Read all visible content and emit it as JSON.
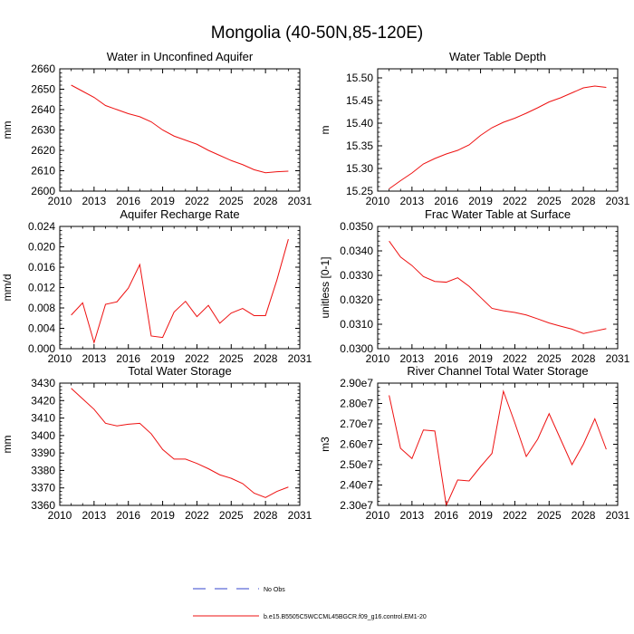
{
  "figure": {
    "title": "Mongolia (40-50N,85-120E)",
    "legend": [
      {
        "label": "No Obs",
        "color": "#3344cc",
        "style": "dashed"
      },
      {
        "label": "b.e15.B5505C5WCCML45BGCR.f09_g16.control.EM1-20",
        "color": "#ee1111",
        "style": "solid"
      }
    ]
  },
  "chart_data": [
    {
      "type": "line",
      "title": "Water in Unconfined Aquifer",
      "ylabel": "mm",
      "xlim": [
        2010,
        2031
      ],
      "xticks": [
        2010,
        2013,
        2016,
        2019,
        2022,
        2025,
        2028,
        2031
      ],
      "ylim": [
        2600,
        2660
      ],
      "yticks": [
        "2600",
        "2610",
        "2620",
        "2630",
        "2640",
        "2650",
        "2660"
      ],
      "yticks_values": [
        2600,
        2610,
        2620,
        2630,
        2640,
        2650,
        2660
      ],
      "x": [
        2011,
        2012,
        2013,
        2014,
        2015,
        2016,
        2017,
        2018,
        2019,
        2020,
        2021,
        2022,
        2023,
        2024,
        2025,
        2026,
        2027,
        2028,
        2029,
        2030
      ],
      "values": [
        2652,
        2649,
        2646,
        2642,
        2640,
        2638,
        2636.5,
        2634,
        2630,
        2627,
        2625,
        2623,
        2620,
        2617.5,
        2615,
        2613,
        2610.5,
        2609,
        2609.5,
        2609.8
      ],
      "color": "#ee1111"
    },
    {
      "type": "line",
      "title": "Water Table Depth",
      "ylabel": "m",
      "xlim": [
        2010,
        2031
      ],
      "xticks": [
        2010,
        2013,
        2016,
        2019,
        2022,
        2025,
        2028,
        2031
      ],
      "ylim": [
        15.25,
        15.52
      ],
      "yticks": [
        "15.25",
        "15.30",
        "15.35",
        "15.40",
        "15.45",
        "15.50"
      ],
      "yticks_values": [
        15.25,
        15.3,
        15.35,
        15.4,
        15.45,
        15.5
      ],
      "x": [
        2011,
        2012,
        2013,
        2014,
        2015,
        2016,
        2017,
        2018,
        2019,
        2020,
        2021,
        2022,
        2023,
        2024,
        2025,
        2026,
        2027,
        2028,
        2029,
        2030
      ],
      "values": [
        15.255,
        15.273,
        15.29,
        15.31,
        15.322,
        15.332,
        15.34,
        15.352,
        15.373,
        15.39,
        15.402,
        15.411,
        15.422,
        15.434,
        15.447,
        15.456,
        15.467,
        15.478,
        15.482,
        15.479
      ],
      "color": "#ee1111"
    },
    {
      "type": "line",
      "title": "Aquifer Recharge Rate",
      "ylabel": "mm/d",
      "xlim": [
        2010,
        2031
      ],
      "xticks": [
        2010,
        2013,
        2016,
        2019,
        2022,
        2025,
        2028,
        2031
      ],
      "ylim": [
        0,
        0.024
      ],
      "yticks": [
        "0.000",
        "0.004",
        "0.008",
        "0.012",
        "0.016",
        "0.020",
        "0.024"
      ],
      "yticks_values": [
        0,
        0.004,
        0.008,
        0.012,
        0.016,
        0.02,
        0.024
      ],
      "x": [
        2011,
        2012,
        2013,
        2014,
        2015,
        2016,
        2017,
        2018,
        2019,
        2020,
        2021,
        2022,
        2023,
        2024,
        2025,
        2026,
        2027,
        2028,
        2029,
        2030
      ],
      "values": [
        0.0066,
        0.009,
        0.0012,
        0.0087,
        0.0092,
        0.0119,
        0.0165,
        0.0025,
        0.0022,
        0.0072,
        0.0093,
        0.0063,
        0.0085,
        0.005,
        0.007,
        0.0079,
        0.0065,
        0.0065,
        0.0135,
        0.0215
      ],
      "color": "#ee1111"
    },
    {
      "type": "line",
      "title": "Frac Water Table at Surface",
      "ylabel": "unitless [0-1]",
      "xlim": [
        2010,
        2031
      ],
      "xticks": [
        2010,
        2013,
        2016,
        2019,
        2022,
        2025,
        2028,
        2031
      ],
      "ylim": [
        0.03,
        0.035
      ],
      "yticks": [
        "0.0300",
        "0.0310",
        "0.0320",
        "0.0330",
        "0.0340",
        "0.0350"
      ],
      "yticks_values": [
        0.03,
        0.031,
        0.032,
        0.033,
        0.034,
        0.035
      ],
      "x": [
        2011,
        2012,
        2013,
        2014,
        2015,
        2016,
        2017,
        2018,
        2019,
        2020,
        2021,
        2022,
        2023,
        2024,
        2025,
        2026,
        2027,
        2028,
        2029,
        2030
      ],
      "values": [
        0.0344,
        0.03375,
        0.0334,
        0.03295,
        0.03275,
        0.03272,
        0.0329,
        0.03255,
        0.0321,
        0.03165,
        0.03155,
        0.03148,
        0.03138,
        0.03122,
        0.03105,
        0.03092,
        0.0308,
        0.03062,
        0.03072,
        0.03082
      ],
      "color": "#ee1111"
    },
    {
      "type": "line",
      "title": "Total Water Storage",
      "ylabel": "mm",
      "xlim": [
        2010,
        2031
      ],
      "xticks": [
        2010,
        2013,
        2016,
        2019,
        2022,
        2025,
        2028,
        2031
      ],
      "ylim": [
        3360,
        3430
      ],
      "yticks": [
        "3360",
        "3370",
        "3380",
        "3390",
        "3400",
        "3410",
        "3420",
        "3430"
      ],
      "yticks_values": [
        3360,
        3370,
        3380,
        3390,
        3400,
        3410,
        3420,
        3430
      ],
      "x": [
        2011,
        2012,
        2013,
        2014,
        2015,
        2016,
        2017,
        2018,
        2019,
        2020,
        2021,
        2022,
        2023,
        2024,
        2025,
        2026,
        2027,
        2028,
        2029,
        2030
      ],
      "values": [
        3427,
        3421,
        3415,
        3407,
        3405.5,
        3406.5,
        3407,
        3401,
        3392,
        3386.5,
        3386.5,
        3384,
        3381,
        3377.5,
        3375.5,
        3372.5,
        3367,
        3364.5,
        3368,
        3370.5
      ],
      "color": "#ee1111"
    },
    {
      "type": "line",
      "title": "River Channel Total Water Storage",
      "ylabel": "m3",
      "xlim": [
        2010,
        2031
      ],
      "xticks": [
        2010,
        2013,
        2016,
        2019,
        2022,
        2025,
        2028,
        2031
      ],
      "ylim": [
        23000000,
        29000000
      ],
      "yticks": [
        "2.30e7",
        "2.40e7",
        "2.50e7",
        "2.60e7",
        "2.70e7",
        "2.80e7",
        "2.90e7"
      ],
      "yticks_values": [
        23000000,
        24000000,
        25000000,
        26000000,
        27000000,
        28000000,
        29000000
      ],
      "x": [
        2011,
        2012,
        2013,
        2014,
        2015,
        2016,
        2017,
        2018,
        2019,
        2020,
        2021,
        2022,
        2023,
        2024,
        2025,
        2026,
        2027,
        2028,
        2029,
        2030
      ],
      "values": [
        28400000,
        25800000,
        25300000,
        26700000,
        26650000,
        23000000,
        24250000,
        24200000,
        24900000,
        25550000,
        28600000,
        27050000,
        25400000,
        26250000,
        27500000,
        26250000,
        25000000,
        26000000,
        27250000,
        25750000
      ],
      "color": "#ee1111"
    }
  ]
}
